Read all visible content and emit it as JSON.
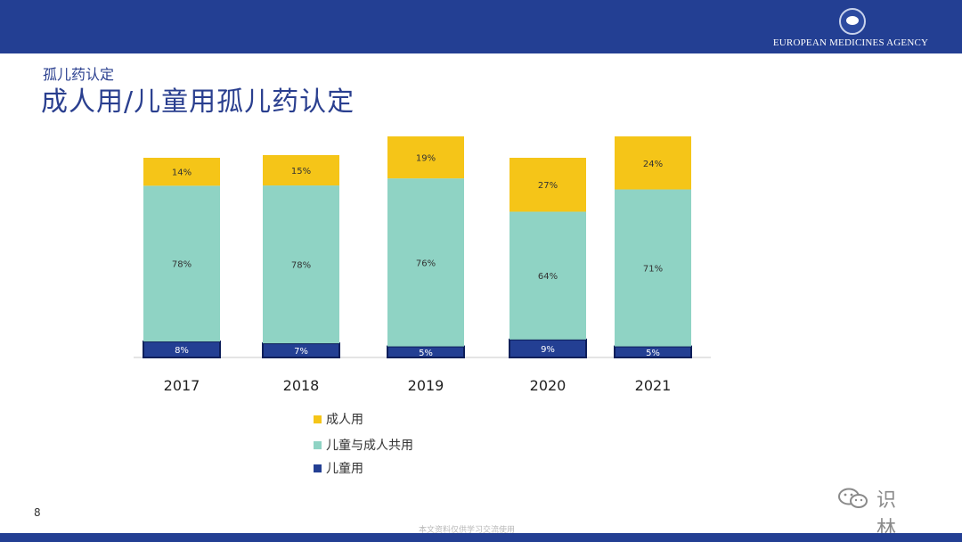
{
  "header": {
    "agency_name": "EUROPEAN MEDICINES AGENCY",
    "logo_icon": "ema-logo-icon"
  },
  "slide": {
    "subtitle": "孤儿药认定",
    "title": "成人用/儿童用孤儿药认定",
    "page_number": "8",
    "footnote": "本文资料仅供学习交流使用",
    "watermark_text": "识林",
    "watermark_icon": "wechat-icon"
  },
  "colors": {
    "brand_blue": "#233f93",
    "adult": "#f5c518",
    "both": "#8fd3c4",
    "child": "#233f93"
  },
  "legend": [
    {
      "label": "成人用",
      "color": "#f5c518"
    },
    {
      "label": "儿童与成人共用",
      "color": "#8fd3c4"
    },
    {
      "label": "儿童用",
      "color": "#233f93"
    }
  ],
  "chart_data": {
    "type": "bar",
    "stacked": true,
    "percent": true,
    "title": "",
    "xlabel": "",
    "ylabel": "",
    "categories": [
      "2017",
      "2018",
      "2019",
      "2020",
      "2021"
    ],
    "series": [
      {
        "name": "儿童用",
        "color": "#233f93",
        "values": [
          8,
          7,
          5,
          9,
          5
        ],
        "labels": [
          "8%",
          "7%",
          "5%",
          "9%",
          "5%"
        ]
      },
      {
        "name": "儿童与成人共用",
        "color": "#8fd3c4",
        "values": [
          78,
          78,
          76,
          64,
          71
        ],
        "labels": [
          "78%",
          "78%",
          "76%",
          "64%",
          "71%"
        ]
      },
      {
        "name": "成人用",
        "color": "#f5c518",
        "values": [
          14,
          15,
          19,
          27,
          24
        ],
        "labels": [
          "14%",
          "15%",
          "19%",
          "27%",
          "24%"
        ]
      }
    ],
    "ylim": [
      0,
      100
    ],
    "grid": false,
    "legend_position": "bottom"
  }
}
